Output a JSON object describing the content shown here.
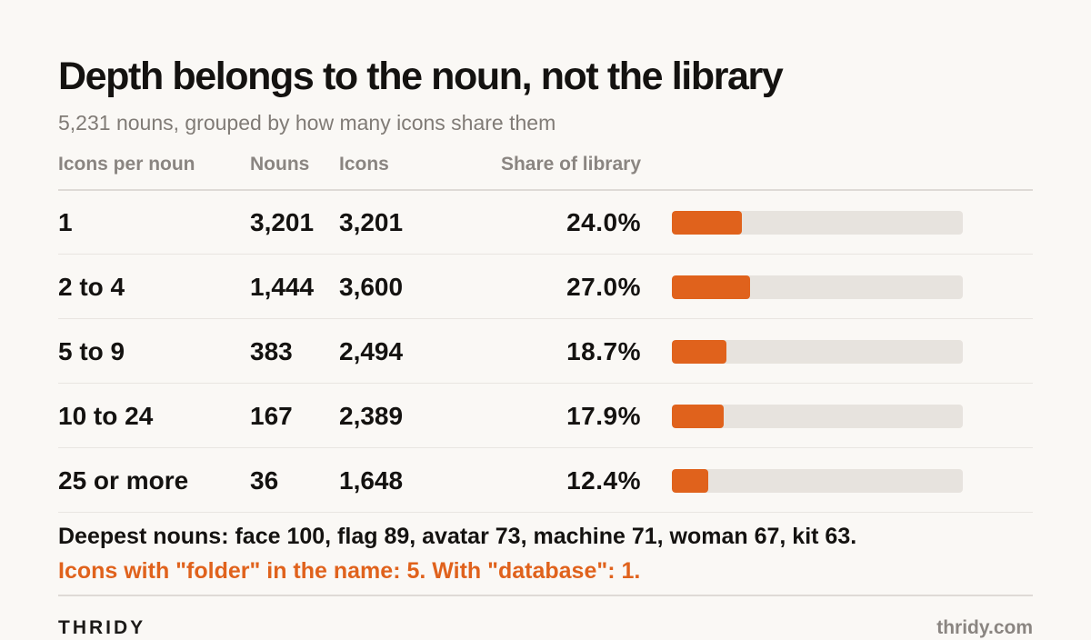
{
  "header": {
    "title": "Depth belongs to the noun, not the library",
    "subtitle": "5,231 nouns, grouped by how many icons share them"
  },
  "chart_data": {
    "type": "table",
    "title": "Depth belongs to the noun, not the library",
    "subtitle": "5,231 nouns, grouped by how many icons share them",
    "columns": [
      "Icons per noun",
      "Nouns",
      "Icons",
      "Share of library"
    ],
    "rows": [
      {
        "group": "1",
        "nouns": "3,201",
        "icons": "3,201",
        "share": "24.0%"
      },
      {
        "group": "2 to 4",
        "nouns": "1,444",
        "icons": "3,600",
        "share": "27.0%"
      },
      {
        "group": "5 to 9",
        "nouns": "383",
        "icons": "2,494",
        "share": "18.7%"
      },
      {
        "group": "10 to 24",
        "nouns": "167",
        "icons": "2,389",
        "share": "17.9%"
      },
      {
        "group": "25 or more",
        "nouns": "36",
        "icons": "1,648",
        "share": "12.4%"
      }
    ],
    "bar_series": {
      "name": "Share of library",
      "unit": "%",
      "values": [
        24.0,
        27.0,
        18.7,
        17.9,
        12.4
      ],
      "scale_max": 100
    },
    "colors": {
      "bar_fill": "#e0621c",
      "bar_track": "#e7e3de"
    }
  },
  "notes": {
    "deepest": "Deepest nouns: face 100, flag 89, avatar 73, machine 71, woman 67, kit 63.",
    "highlight": "Icons with \"folder\" in the name: 5. With \"database\": 1."
  },
  "footer": {
    "brand": "THRIDY",
    "url": "thridy.com"
  },
  "colors": {
    "background": "#faf8f5",
    "accent": "#e0621c",
    "text": "#141210",
    "muted": "#807b76"
  }
}
